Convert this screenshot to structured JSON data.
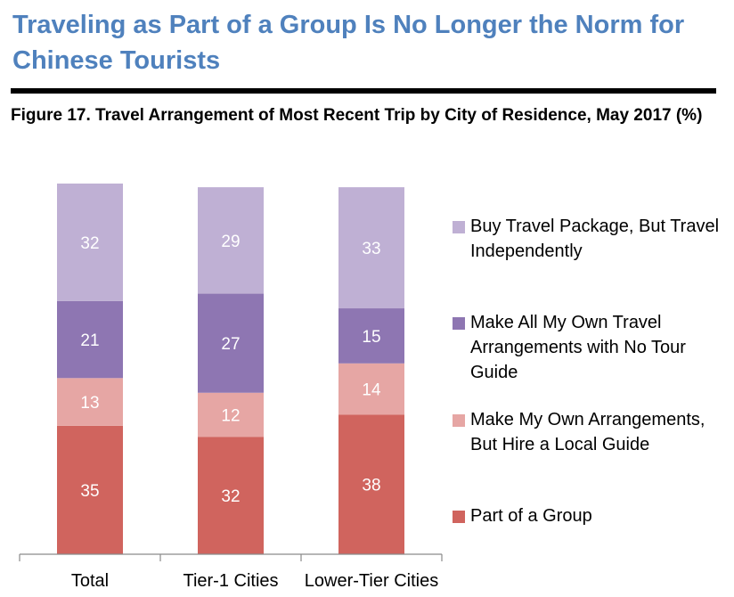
{
  "headline": {
    "text": "Traveling as Part of a Group Is No Longer the Norm for Chinese Tourists",
    "color": "#4F81BD"
  },
  "rule_color": "#000000",
  "figure_title": "Figure 17. Travel Arrangement of Most Recent Trip by City of Residence, May 2017 (%)",
  "chart_data": {
    "type": "bar",
    "stacked": true,
    "title": "Figure 17. Travel Arrangement of Most Recent Trip by City of Residence, May 2017 (%)",
    "xlabel": "",
    "ylabel": "",
    "ylim": [
      0,
      101
    ],
    "grid": false,
    "legend_position": "right",
    "categories": [
      "Total",
      "Tier-1 Cities",
      "Lower-Tier Cities"
    ],
    "series": [
      {
        "name": "Part of a Group",
        "values": [
          35,
          32,
          38
        ],
        "color": "#D0645E"
      },
      {
        "name": "Make My Own Arrangements, But Hire a Local Guide",
        "values": [
          13,
          12,
          14
        ],
        "color": "#E6A6A4"
      },
      {
        "name": "Make All My Own Travel Arrangements with No Tour Guide",
        "values": [
          21,
          27,
          15
        ],
        "color": "#8E76B2"
      },
      {
        "name": "Buy Travel Package, But Travel Independently",
        "values": [
          32,
          29,
          33
        ],
        "color": "#BFB0D4"
      }
    ]
  }
}
